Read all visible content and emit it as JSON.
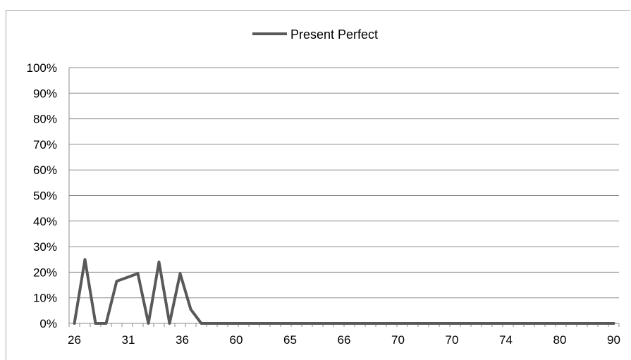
{
  "chart_data": {
    "type": "line",
    "title": "",
    "xlabel": "",
    "ylabel": "",
    "ylim": [
      0,
      100
    ],
    "y_ticks": [
      "0%",
      "10%",
      "20%",
      "30%",
      "40%",
      "50%",
      "60%",
      "70%",
      "80%",
      "90%",
      "100%"
    ],
    "x_tick_labels": [
      "26",
      "31",
      "36",
      "60",
      "65",
      "66",
      "70",
      "70",
      "74",
      "80",
      "90"
    ],
    "grid": true,
    "legend": "top-center",
    "series": [
      {
        "name": "Present Perfect",
        "color": "#595959",
        "values": [
          0,
          25,
          0,
          0,
          16.5,
          18,
          19.5,
          0,
          24,
          0,
          19.5,
          5.5,
          0,
          0,
          0,
          0,
          0,
          0,
          0,
          0,
          0,
          0,
          0,
          0,
          0,
          0,
          0,
          0,
          0,
          0,
          0,
          0,
          0,
          0,
          0,
          0,
          0,
          0,
          0,
          0,
          0,
          0,
          0,
          0,
          0,
          0,
          0,
          0,
          0,
          0,
          0,
          0
        ]
      }
    ]
  }
}
